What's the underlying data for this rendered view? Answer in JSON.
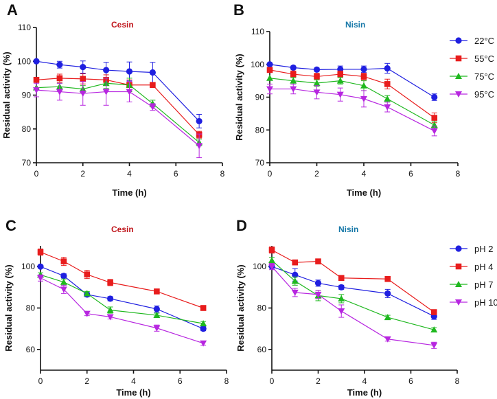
{
  "colors": {
    "blue": "#1f1fe0",
    "red": "#e81c1c",
    "green": "#1fb81f",
    "purple": "#b726e0",
    "cesin_title": "#c0161c",
    "nisin_title": "#1778a8"
  },
  "legends": {
    "temperature": [
      {
        "label": "22°C",
        "color": "#1f1fe0",
        "marker": "circle"
      },
      {
        "label": "55°C",
        "color": "#e81c1c",
        "marker": "square"
      },
      {
        "label": "75°C",
        "color": "#1fb81f",
        "marker": "triangle-up"
      },
      {
        "label": "95°C",
        "color": "#b726e0",
        "marker": "triangle-down"
      }
    ],
    "ph": [
      {
        "label": "pH 2",
        "color": "#1f1fe0",
        "marker": "circle"
      },
      {
        "label": "pH 4",
        "color": "#e81c1c",
        "marker": "square"
      },
      {
        "label": "pH 7",
        "color": "#1fb81f",
        "marker": "triangle-up"
      },
      {
        "label": "pH 10",
        "color": "#b726e0",
        "marker": "triangle-down"
      }
    ]
  },
  "chart_data": [
    {
      "panel": "A",
      "type": "line",
      "title": "Cesin",
      "title_color": "#c0161c",
      "xlabel": "Time (h)",
      "ylabel": "Residual activity (%)",
      "xlim": [
        0,
        8
      ],
      "ylim": [
        70,
        110
      ],
      "xticks": [
        0,
        2,
        4,
        6,
        8
      ],
      "yticks": [
        70,
        80,
        90,
        100,
        110
      ],
      "x": [
        0,
        1,
        2,
        3,
        4,
        5,
        7
      ],
      "series": [
        {
          "name": "22°C",
          "values": [
            100,
            99,
            98.3,
            97.4,
            97,
            96.7,
            82.3
          ],
          "errors": [
            0,
            1,
            1.8,
            2.3,
            2.8,
            3,
            2
          ]
        },
        {
          "name": "55°C",
          "values": [
            94.5,
            95,
            94.8,
            94.5,
            93,
            93,
            78.3
          ],
          "errors": [
            0,
            1.2,
            1.5,
            1.5,
            1.5,
            0.5,
            1
          ]
        },
        {
          "name": "75°C",
          "values": [
            92.2,
            92.5,
            91.8,
            93.5,
            93,
            87.5,
            76
          ],
          "errors": [
            0,
            1,
            1,
            1.5,
            2,
            1,
            1
          ]
        },
        {
          "name": "95°C",
          "values": [
            91.5,
            91,
            90.5,
            91,
            91,
            86.5,
            75
          ],
          "errors": [
            2,
            2.5,
            3.5,
            4,
            3,
            1,
            3.5
          ]
        }
      ]
    },
    {
      "panel": "B",
      "type": "line",
      "title": "Nisin",
      "title_color": "#1778a8",
      "xlabel": "Time (h)",
      "ylabel": "Residual activity (%)",
      "xlim": [
        0,
        8
      ],
      "ylim": [
        70,
        110
      ],
      "xticks": [
        0,
        2,
        4,
        6,
        8
      ],
      "yticks": [
        70,
        80,
        90,
        100,
        110
      ],
      "x": [
        0,
        1,
        2,
        3,
        4,
        5,
        7
      ],
      "series": [
        {
          "name": "22°C",
          "values": [
            100,
            99,
            98.4,
            98.5,
            98.5,
            98.8,
            90
          ],
          "errors": [
            0,
            0.5,
            0.5,
            1,
            1,
            1.5,
            1
          ]
        },
        {
          "name": "55°C",
          "values": [
            98.3,
            97,
            96.3,
            97,
            96.3,
            94,
            83.7
          ],
          "errors": [
            0,
            1,
            1,
            1,
            1,
            1.5,
            1.5
          ]
        },
        {
          "name": "75°C",
          "values": [
            95.8,
            95,
            94.3,
            95,
            93.5,
            89.5,
            81.5
          ],
          "errors": [
            0,
            1,
            1,
            1,
            1.5,
            1,
            1
          ]
        },
        {
          "name": "95°C",
          "values": [
            92.5,
            92.5,
            91.5,
            90.8,
            89.5,
            87,
            79.7
          ],
          "errors": [
            1.5,
            1.5,
            2,
            2,
            2.5,
            1.5,
            1.5
          ]
        }
      ]
    },
    {
      "panel": "C",
      "type": "line",
      "title": "Cesin",
      "title_color": "#c0161c",
      "xlabel": "Time (h)",
      "ylabel": "Residual activity (%)",
      "xlim": [
        0,
        8
      ],
      "ylim": [
        50,
        110
      ],
      "xticks": [
        0,
        2,
        4,
        6,
        8
      ],
      "yticks": [
        60,
        80,
        100
      ],
      "x": [
        0,
        1,
        2,
        3,
        5,
        7
      ],
      "series": [
        {
          "name": "pH 2",
          "values": [
            100,
            95.5,
            86.5,
            84.5,
            79.5,
            70
          ],
          "errors": [
            0,
            1,
            1,
            1,
            1.5,
            1
          ]
        },
        {
          "name": "pH 4",
          "values": [
            107,
            102.5,
            96.2,
            92.3,
            88,
            80
          ],
          "errors": [
            1.5,
            2,
            2,
            1.5,
            1,
            1
          ]
        },
        {
          "name": "pH 7",
          "values": [
            96,
            92.5,
            87,
            79,
            76.5,
            72.5
          ],
          "errors": [
            1,
            1.5,
            1,
            1.5,
            1,
            1
          ]
        },
        {
          "name": "pH 10",
          "values": [
            94.5,
            89,
            77.3,
            75.7,
            70.3,
            63
          ],
          "errors": [
            1.5,
            2,
            1,
            1,
            1.5,
            1
          ]
        }
      ]
    },
    {
      "panel": "D",
      "type": "line",
      "title": "Nisin",
      "title_color": "#1778a8",
      "xlabel": "Time (h)",
      "ylabel": "Residual activity (%)",
      "xlim": [
        0,
        8
      ],
      "ylim": [
        50,
        110
      ],
      "xticks": [
        0,
        2,
        4,
        6,
        8
      ],
      "yticks": [
        60,
        80,
        100
      ],
      "x": [
        0,
        1,
        2,
        3,
        5,
        7
      ],
      "series": [
        {
          "name": "pH 2",
          "values": [
            100,
            96,
            92,
            90,
            87,
            76
          ],
          "errors": [
            0,
            3,
            1.5,
            1,
            2,
            1.5
          ]
        },
        {
          "name": "pH 4",
          "values": [
            108,
            102,
            102.5,
            94.5,
            94,
            78
          ],
          "errors": [
            1.5,
            1,
            1,
            0.5,
            0.5,
            0.5
          ]
        },
        {
          "name": "pH 7",
          "values": [
            103,
            93,
            86,
            84.5,
            75.5,
            69.5
          ],
          "errors": [
            1.5,
            2,
            2.5,
            2,
            1,
            1
          ]
        },
        {
          "name": "pH 10",
          "values": [
            100,
            87.5,
            86.5,
            78.5,
            65,
            62
          ],
          "errors": [
            1.5,
            2,
            2,
            3,
            1,
            1.5
          ]
        }
      ]
    }
  ]
}
